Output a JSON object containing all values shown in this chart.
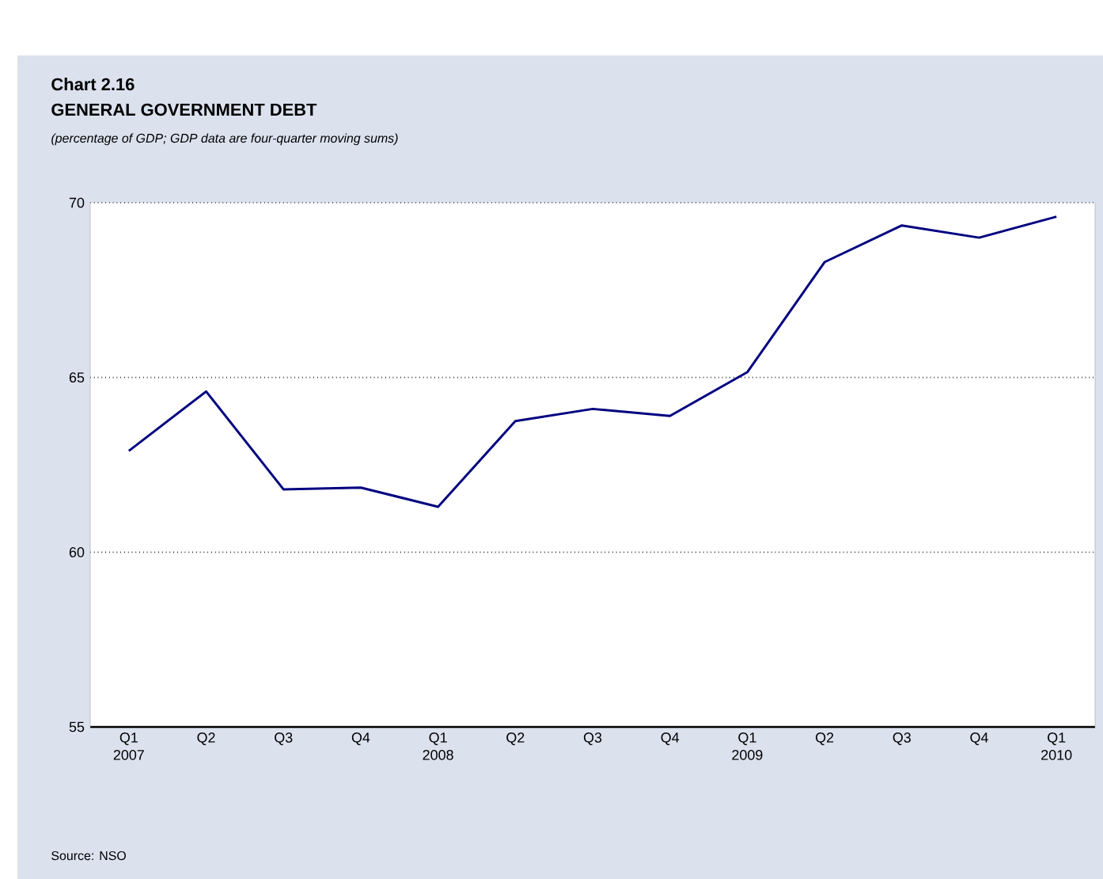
{
  "chart_data": {
    "type": "line",
    "title": "Chart 2.16",
    "subtitle": "GENERAL GOVERNMENT DEBT",
    "annotations": [
      "(percentage of GDP; GDP data are four-quarter moving sums)",
      "Source: NSO"
    ],
    "categories": [
      "Q1 2007",
      "Q2",
      "Q3",
      "Q4",
      "Q1 2008",
      "Q2",
      "Q3",
      "Q4",
      "Q1 2009",
      "Q2",
      "Q3",
      "Q4",
      "Q1 2010"
    ],
    "series": [
      {
        "color": "#000080",
        "values": [
          62.9,
          64.6,
          61.8,
          61.85,
          61.3,
          63.75,
          64.1,
          63.9,
          65.15,
          68.3,
          69.35,
          69.0,
          69.6
        ]
      }
    ],
    "ylim": [
      55,
      70
    ],
    "yticks": [
      55,
      60,
      65,
      70
    ],
    "grid": "y",
    "marker": "none",
    "line_style": "solid"
  }
}
